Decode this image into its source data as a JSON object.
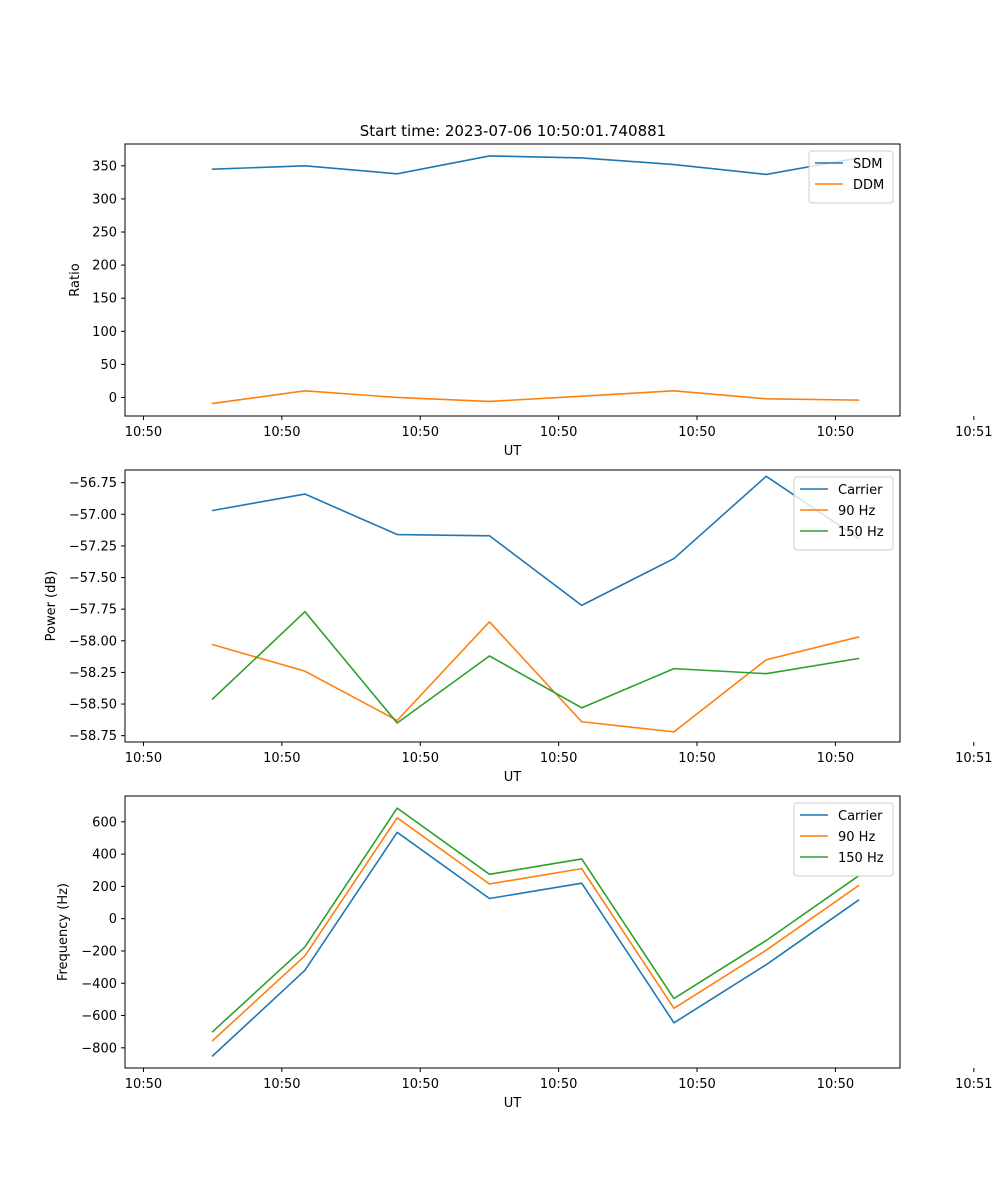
{
  "figure": {
    "title": "Start time: 2023-07-06 10:50:01.740881",
    "colors": {
      "blue": "#1f77b4",
      "orange": "#ff7f0e",
      "green": "#2ca02c"
    }
  },
  "chart_data": [
    {
      "type": "line",
      "title": "Start time: 2023-07-06 10:50:01.740881",
      "xlabel": "UT",
      "ylabel": "Ratio",
      "xlim": [
        -0.2,
        8.2
      ],
      "ylim": [
        -28,
        383
      ],
      "xticks": [
        {
          "value": 0,
          "label": "10:50"
        },
        {
          "value": 1.5,
          "label": "10:50"
        },
        {
          "value": 3,
          "label": "10:50"
        },
        {
          "value": 4.5,
          "label": "10:50"
        },
        {
          "value": 6,
          "label": "10:50"
        },
        {
          "value": 7.5,
          "label": "10:50"
        },
        {
          "value": 9,
          "label": "10:51"
        }
      ],
      "yticks": [
        {
          "value": 0,
          "label": "0"
        },
        {
          "value": 50,
          "label": "50"
        },
        {
          "value": 100,
          "label": "100"
        },
        {
          "value": 150,
          "label": "150"
        },
        {
          "value": 200,
          "label": "200"
        },
        {
          "value": 250,
          "label": "250"
        },
        {
          "value": 300,
          "label": "300"
        },
        {
          "value": 350,
          "label": "350"
        }
      ],
      "x": [
        0.75,
        1.75,
        2.75,
        3.75,
        4.75,
        5.75,
        6.75,
        7.75
      ],
      "series": [
        {
          "name": "SDM",
          "color": "#1f77b4",
          "values": [
            345,
            350,
            338,
            365,
            362,
            352,
            337,
            362
          ]
        },
        {
          "name": "DDM",
          "color": "#ff7f0e",
          "values": [
            -9,
            10,
            0,
            -6,
            2,
            10,
            -2,
            -4
          ]
        }
      ],
      "legend": "upper-right",
      "grid": false
    },
    {
      "type": "line",
      "title": "",
      "xlabel": "UT",
      "ylabel": "Power (dB)",
      "xlim": [
        -0.2,
        8.2
      ],
      "ylim": [
        -58.8,
        -56.65
      ],
      "xticks": [
        {
          "value": 0,
          "label": "10:50"
        },
        {
          "value": 1.5,
          "label": "10:50"
        },
        {
          "value": 3,
          "label": "10:50"
        },
        {
          "value": 4.5,
          "label": "10:50"
        },
        {
          "value": 6,
          "label": "10:50"
        },
        {
          "value": 7.5,
          "label": "10:50"
        },
        {
          "value": 9,
          "label": "10:51"
        }
      ],
      "yticks": [
        {
          "value": -58.75,
          "label": "−58.75"
        },
        {
          "value": -58.5,
          "label": "−58.50"
        },
        {
          "value": -58.25,
          "label": "−58.25"
        },
        {
          "value": -58.0,
          "label": "−58.00"
        },
        {
          "value": -57.75,
          "label": "−57.75"
        },
        {
          "value": -57.5,
          "label": "−57.50"
        },
        {
          "value": -57.25,
          "label": "−57.25"
        },
        {
          "value": -57.0,
          "label": "−57.00"
        },
        {
          "value": -56.75,
          "label": "−56.75"
        }
      ],
      "x": [
        0.75,
        1.75,
        2.75,
        3.75,
        4.75,
        5.75,
        6.75,
        7.75
      ],
      "series": [
        {
          "name": "Carrier",
          "color": "#1f77b4",
          "values": [
            -56.97,
            -56.84,
            -57.16,
            -57.17,
            -57.72,
            -57.35,
            -56.7,
            -57.19
          ]
        },
        {
          "name": "90 Hz",
          "color": "#ff7f0e",
          "values": [
            -58.03,
            -58.24,
            -58.63,
            -57.85,
            -58.64,
            -58.72,
            -58.15,
            -57.97
          ]
        },
        {
          "name": "150 Hz",
          "color": "#2ca02c",
          "values": [
            -58.46,
            -57.77,
            -58.65,
            -58.12,
            -58.53,
            -58.22,
            -58.26,
            -58.14
          ]
        }
      ],
      "legend": "upper-right",
      "grid": false
    },
    {
      "type": "line",
      "title": "",
      "xlabel": "UT",
      "ylabel": "Frequency (Hz)",
      "xlim": [
        -0.2,
        8.2
      ],
      "ylim": [
        -925,
        760
      ],
      "xticks": [
        {
          "value": 0,
          "label": "10:50"
        },
        {
          "value": 1.5,
          "label": "10:50"
        },
        {
          "value": 3,
          "label": "10:50"
        },
        {
          "value": 4.5,
          "label": "10:50"
        },
        {
          "value": 6,
          "label": "10:50"
        },
        {
          "value": 7.5,
          "label": "10:50"
        },
        {
          "value": 9,
          "label": "10:51"
        }
      ],
      "yticks": [
        {
          "value": -800,
          "label": "−800"
        },
        {
          "value": -600,
          "label": "−600"
        },
        {
          "value": -400,
          "label": "−400"
        },
        {
          "value": -200,
          "label": "−200"
        },
        {
          "value": 0,
          "label": "0"
        },
        {
          "value": 200,
          "label": "200"
        },
        {
          "value": 400,
          "label": "400"
        },
        {
          "value": 600,
          "label": "600"
        }
      ],
      "x": [
        0.75,
        1.75,
        2.75,
        3.75,
        4.75,
        5.75,
        6.75,
        7.75
      ],
      "series": [
        {
          "name": "Carrier",
          "color": "#1f77b4",
          "values": [
            -850,
            -320,
            535,
            125,
            220,
            -645,
            -285,
            115
          ]
        },
        {
          "name": "90 Hz",
          "color": "#ff7f0e",
          "values": [
            -755,
            -230,
            625,
            215,
            310,
            -555,
            -195,
            205
          ]
        },
        {
          "name": "150 Hz",
          "color": "#2ca02c",
          "values": [
            -700,
            -175,
            685,
            275,
            370,
            -495,
            -135,
            265
          ]
        }
      ],
      "legend": "upper-right",
      "grid": false
    }
  ]
}
